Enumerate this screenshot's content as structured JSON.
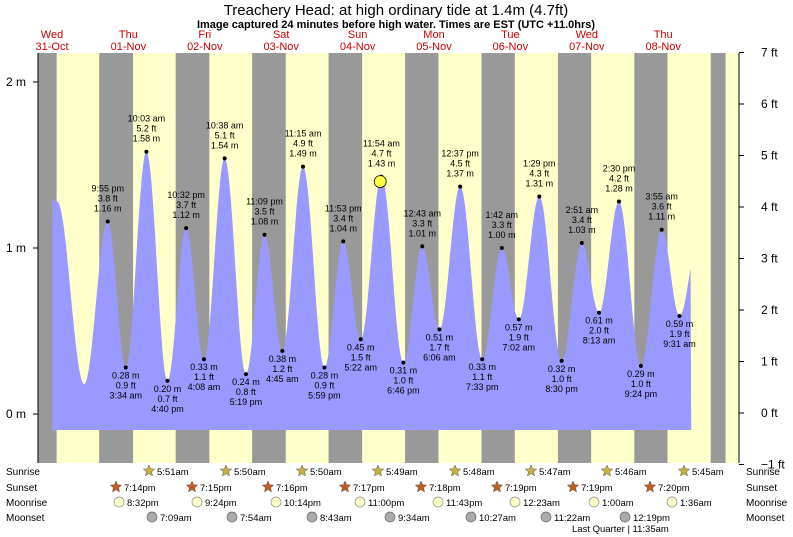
{
  "title": "Treachery Head: at high  ordinary tide at 1.4m (4.7ft)",
  "subtitle": "Image captured 24 minutes before high water. Times are EST (UTC +11.0hrs)",
  "days": [
    {
      "name": "Wed",
      "date": "31-Oct"
    },
    {
      "name": "Thu",
      "date": "01-Nov"
    },
    {
      "name": "Fri",
      "date": "02-Nov"
    },
    {
      "name": "Sat",
      "date": "03-Nov"
    },
    {
      "name": "Sun",
      "date": "04-Nov"
    },
    {
      "name": "Mon",
      "date": "05-Nov"
    },
    {
      "name": "Tue",
      "date": "06-Nov"
    },
    {
      "name": "Wed",
      "date": "07-Nov"
    },
    {
      "name": "Thu",
      "date": "08-Nov"
    }
  ],
  "chart_data": {
    "type": "area",
    "title": "Treachery Head: at high  ordinary tide at 1.4m (4.7ft)",
    "y_left_unit": "m",
    "y_left_ticks": [
      "2 m",
      "1 m",
      "0 m"
    ],
    "y_right_ticks": [
      "7 ft",
      "6 ft",
      "5 ft",
      "4 ft",
      "3 ft",
      "2 ft",
      "1 ft",
      "0 ft",
      "−1 ft"
    ],
    "ylim_m": [
      -0.2,
      2.1
    ],
    "xlim_hours_from_start": [
      0,
      216
    ],
    "series": [
      {
        "points": [
          {
            "t": 21.92,
            "m": 1.16,
            "ft": "3.8 ft",
            "time": "9:55 pm"
          },
          {
            "t": 27.57,
            "m": 0.28,
            "ft": "0.9 ft",
            "time": "3:34 am"
          },
          {
            "t": 34.05,
            "m": 1.58,
            "ft": "5.2 ft",
            "time": "10:03 am"
          },
          {
            "t": 40.67,
            "m": 0.2,
            "ft": "0.7 ft",
            "time": "4:40 pm"
          },
          {
            "t": 46.53,
            "m": 1.12,
            "ft": "3.7 ft",
            "time": "10:32 pm"
          },
          {
            "t": 52.13,
            "m": 0.33,
            "ft": "1.1 ft",
            "time": "4:08 am"
          },
          {
            "t": 58.63,
            "m": 1.54,
            "ft": "5.1 ft",
            "time": "10:38 am"
          },
          {
            "t": 65.32,
            "m": 0.24,
            "ft": "0.8 ft",
            "time": "5:19 pm"
          },
          {
            "t": 71.15,
            "m": 1.08,
            "ft": "3.5 ft",
            "time": "11:09 pm"
          },
          {
            "t": 76.75,
            "m": 0.38,
            "ft": "1.2 ft",
            "time": "4:45 am"
          },
          {
            "t": 83.25,
            "m": 1.49,
            "ft": "4.9 ft",
            "time": "11:15 am"
          },
          {
            "t": 89.98,
            "m": 0.28,
            "ft": "0.9 ft",
            "time": "5:59 pm"
          },
          {
            "t": 95.88,
            "m": 1.04,
            "ft": "3.4 ft",
            "time": "11:53 pm"
          },
          {
            "t": 101.37,
            "m": 0.45,
            "ft": "1.5 ft",
            "time": "5:22 am"
          },
          {
            "t": 107.9,
            "m": 1.43,
            "ft": "4.7 ft",
            "time": "11:54 am"
          },
          {
            "t": 114.77,
            "m": 0.31,
            "ft": "1.0 ft",
            "time": "6:46 pm"
          },
          {
            "t": 120.72,
            "m": 1.01,
            "ft": "3.3 ft",
            "time": "12:43 am"
          },
          {
            "t": 126.1,
            "m": 0.51,
            "ft": "1.7 ft",
            "time": "6:06 am"
          },
          {
            "t": 132.62,
            "m": 1.37,
            "ft": "4.5 ft",
            "time": "12:37 pm"
          },
          {
            "t": 139.55,
            "m": 0.33,
            "ft": "1.1 ft",
            "time": "7:33 pm"
          },
          {
            "t": 145.7,
            "m": 1.0,
            "ft": "3.3 ft",
            "time": "1:42 am"
          },
          {
            "t": 151.03,
            "m": 0.57,
            "ft": "1.9 ft",
            "time": "7:02 am"
          },
          {
            "t": 157.48,
            "m": 1.31,
            "ft": "4.3 ft",
            "time": "1:29 pm"
          },
          {
            "t": 164.5,
            "m": 0.32,
            "ft": "1.0 ft",
            "time": "8:30 pm"
          },
          {
            "t": 170.85,
            "m": 1.03,
            "ft": "3.4 ft",
            "time": "2:51 am"
          },
          {
            "t": 176.22,
            "m": 0.61,
            "ft": "2.0 ft",
            "time": "8:13 am"
          },
          {
            "t": 182.5,
            "m": 1.28,
            "ft": "4.2 ft",
            "time": "2:30 pm"
          },
          {
            "t": 189.4,
            "m": 0.29,
            "ft": "1.0 ft",
            "time": "9:24 pm"
          },
          {
            "t": 195.92,
            "m": 1.11,
            "ft": "3.6 ft",
            "time": "3:55 am"
          },
          {
            "t": 201.52,
            "m": 0.59,
            "ft": "1.9 ft",
            "time": "9:31 am"
          }
        ]
      }
    ],
    "current_marker": {
      "t": 107.5,
      "m": 1.4
    }
  },
  "night_bands_hours": [
    [
      0,
      5.85
    ],
    [
      19.23,
      29.85
    ],
    [
      43.25,
      53.83
    ],
    [
      67.27,
      77.83
    ],
    [
      91.28,
      101.82
    ],
    [
      115.3,
      125.8
    ],
    [
      139.32,
      149.78
    ],
    [
      163.32,
      173.77
    ],
    [
      187.33,
      197.75
    ],
    [
      211.33,
      216
    ]
  ],
  "legend": {
    "sunrise_label": "Sunrise",
    "sunset_label": "Sunset",
    "moonrise_label": "Moonrise",
    "moonset_label": "Moonset",
    "sunrise": [
      "5:51am",
      "5:50am",
      "5:50am",
      "5:49am",
      "5:48am",
      "5:47am",
      "5:46am",
      "5:45am"
    ],
    "sunset": [
      "7:14pm",
      "7:15pm",
      "7:16pm",
      "7:17pm",
      "7:18pm",
      "7:19pm",
      "7:19pm",
      "7:20pm"
    ],
    "moonrise": [
      "8:32pm",
      "9:24pm",
      "10:14pm",
      "11:00pm",
      "11:43pm",
      "12:23am",
      "1:00am",
      "1:36am"
    ],
    "moonset": [
      "7:09am",
      "7:54am",
      "8:43am",
      "9:34am",
      "10:27am",
      "11:22am",
      "12:19pm"
    ],
    "phase_note": "Last Quarter | 11:35am"
  },
  "colors": {
    "day": "#ffffcc",
    "night": "#999999",
    "tide": "#9999ff",
    "grid_line": "#000000",
    "day_label": "#cc0000"
  }
}
